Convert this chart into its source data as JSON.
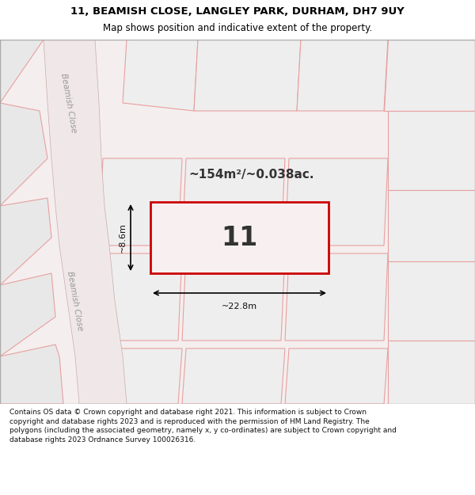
{
  "title_line1": "11, BEAMISH CLOSE, LANGLEY PARK, DURHAM, DH7 9UY",
  "title_line2": "Map shows position and indicative extent of the property.",
  "footer_text": "Contains OS data © Crown copyright and database right 2021. This information is subject to Crown copyright and database rights 2023 and is reproduced with the permission of HM Land Registry. The polygons (including the associated geometry, namely x, y co-ordinates) are subject to Crown copyright and database rights 2023 Ordnance Survey 100026316.",
  "map_bg": "#f5f0f0",
  "plot_fill": "#f5f0f0",
  "road_color": "#e8c8c8",
  "highlight_color": "#cc0000",
  "dim_line_color": "#111111",
  "area_text": "~154m²/~0.038ac.",
  "plot_number": "11",
  "dim_width": "~22.8m",
  "dim_height": "~8.6m",
  "road_label": "Beamish Close",
  "header_bg": "#ffffff",
  "map_border_color": "#cccccc"
}
